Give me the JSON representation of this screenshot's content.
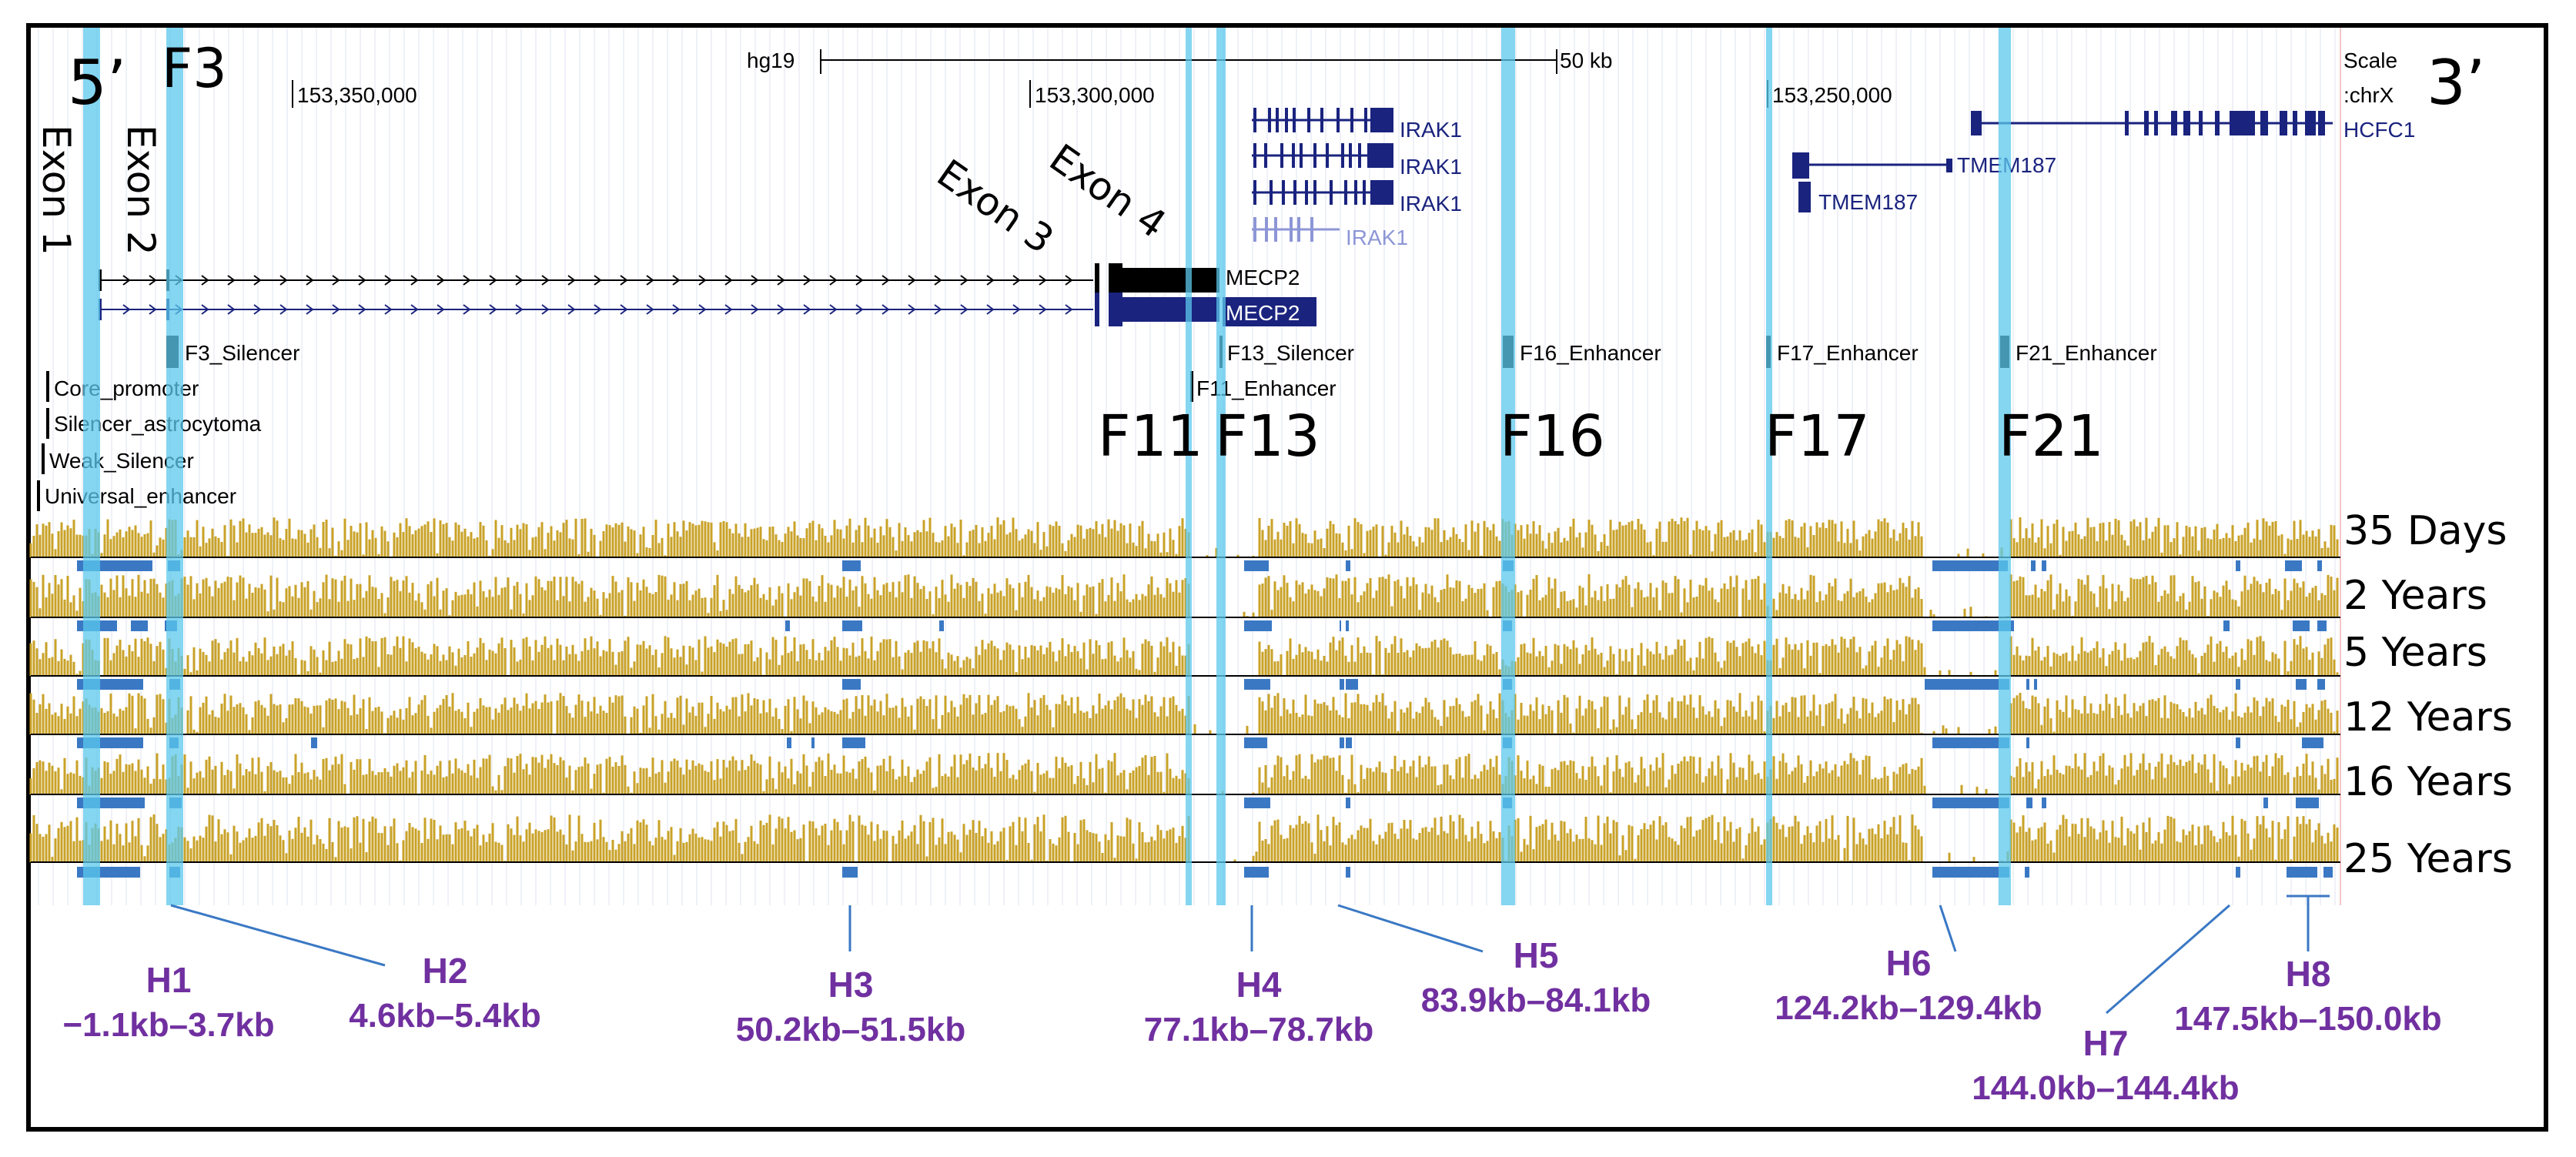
{
  "browser": {
    "assembly": "hg19",
    "scale_label": "Scale",
    "scale_bar_label": "50 kb",
    "chrom_label": ":chrX",
    "coords": [
      "153,350,000",
      "153,300,000",
      "153,250,000"
    ]
  },
  "ends": {
    "five_prime": "5’",
    "three_prime": "3’"
  },
  "genes": {
    "irak1": [
      "IRAK1",
      "IRAK1",
      "IRAK1",
      "IRAK1"
    ],
    "hcfc1": "HCFC1",
    "tmem187": [
      "TMEM187",
      "TMEM187"
    ],
    "mecp2": [
      "MECP2",
      "MECP2"
    ]
  },
  "exons": [
    "Exon 1",
    "Exon 2",
    "Exon 3",
    "Exon 4"
  ],
  "elements": {
    "f3_top": "F3",
    "f3_silencer": "F3_Silencer",
    "core_promoter": "Core_promoter",
    "silencer_astrocytoma": "Silencer_astrocytoma",
    "weak_silencer": "Weak_Silencer",
    "universal_enhancer": "Universal_enhancer",
    "f13_silencer": "F13_Silencer",
    "f11_enhancer": "F11_Enhancer",
    "f16_enhancer": "F16_Enhancer",
    "f17_enhancer": "F17_Enhancer",
    "f21_enhancer": "F21_Enhancer"
  },
  "fragments": [
    "F11",
    "F13",
    "F16",
    "F17",
    "F21"
  ],
  "tracks": [
    "35 Days",
    "2 Years",
    "5 Years",
    "12 Years",
    "16 Years",
    "25 Years"
  ],
  "regions": [
    {
      "name": "H1",
      "range": "−1.1kb–3.7kb"
    },
    {
      "name": "H2",
      "range": "4.6kb–5.4kb"
    },
    {
      "name": "H3",
      "range": "50.2kb–51.5kb"
    },
    {
      "name": "H4",
      "range": "77.1kb–78.7kb"
    },
    {
      "name": "H5",
      "range": "83.9kb–84.1kb"
    },
    {
      "name": "H6",
      "range": "124.2kb–129.4kb"
    },
    {
      "name": "H7",
      "range": "144.0kb–144.4kb"
    },
    {
      "name": "H8",
      "range": "147.5kb–150.0kb"
    }
  ],
  "colors": {
    "signal": "#c9a227",
    "highlight": "#5bc8ec",
    "peak": "#3a78c4",
    "gene": "#1a237e",
    "annotation": "#7030a0"
  }
}
